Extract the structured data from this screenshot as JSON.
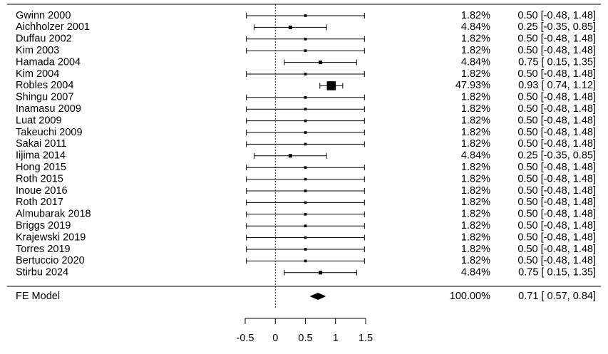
{
  "chart_data": {
    "type": "forest",
    "categories": [
      "Gwinn 2000",
      "Aichholzer 2001",
      "Duffau 2002",
      "Kim 2003",
      "Hamada 2004",
      "Kim 2004",
      "Robles 2004",
      "Shingu 2007",
      "Inamasu 2009",
      "Luat 2009",
      "Takeuchi 2009",
      "Sakai 2011",
      "Iijima 2014",
      "Hong 2015",
      "Roth 2015",
      "Inoue 2016",
      "Roth 2017",
      "Almubarak 2018",
      "Briggs 2019",
      "Krajewski 2019",
      "Torres 2019",
      "Bertuccio 2020",
      "Stirbu 2024"
    ],
    "values": [
      0.5,
      0.25,
      0.5,
      0.5,
      0.75,
      0.5,
      0.93,
      0.5,
      0.5,
      0.5,
      0.5,
      0.5,
      0.25,
      0.5,
      0.5,
      0.5,
      0.5,
      0.5,
      0.5,
      0.5,
      0.5,
      0.5,
      0.75
    ],
    "lower": [
      -0.48,
      -0.35,
      -0.48,
      -0.48,
      0.15,
      -0.48,
      0.74,
      -0.48,
      -0.48,
      -0.48,
      -0.48,
      -0.48,
      -0.35,
      -0.48,
      -0.48,
      -0.48,
      -0.48,
      -0.48,
      -0.48,
      -0.48,
      -0.48,
      -0.48,
      0.15
    ],
    "upper": [
      1.48,
      0.85,
      1.48,
      1.48,
      1.35,
      1.48,
      1.12,
      1.48,
      1.48,
      1.48,
      1.48,
      1.48,
      0.85,
      1.48,
      1.48,
      1.48,
      1.48,
      1.48,
      1.48,
      1.48,
      1.48,
      1.48,
      1.35
    ],
    "weights": [
      1.82,
      4.84,
      1.82,
      1.82,
      4.84,
      1.82,
      47.93,
      1.82,
      1.82,
      1.82,
      1.82,
      1.82,
      4.84,
      1.82,
      1.82,
      1.82,
      1.82,
      1.82,
      1.82,
      1.82,
      1.82,
      1.82,
      4.84
    ],
    "weight_labels": [
      "1.82%",
      "4.84%",
      "1.82%",
      "1.82%",
      "4.84%",
      "1.82%",
      "47.93%",
      "1.82%",
      "1.82%",
      "1.82%",
      "1.82%",
      "1.82%",
      "4.84%",
      "1.82%",
      "1.82%",
      "1.82%",
      "1.82%",
      "1.82%",
      "1.82%",
      "1.82%",
      "1.82%",
      "1.82%",
      "4.84%"
    ],
    "value_labels": [
      "0.50 [-0.48, 1.48]",
      "0.25 [-0.35, 0.85]",
      "0.50 [-0.48, 1.48]",
      "0.50 [-0.48, 1.48]",
      "0.75 [ 0.15, 1.35]",
      "0.50 [-0.48, 1.48]",
      "0.93 [ 0.74, 1.12]",
      "0.50 [-0.48, 1.48]",
      "0.50 [-0.48, 1.48]",
      "0.50 [-0.48, 1.48]",
      "0.50 [-0.48, 1.48]",
      "0.50 [-0.48, 1.48]",
      "0.25 [-0.35, 0.85]",
      "0.50 [-0.48, 1.48]",
      "0.50 [-0.48, 1.48]",
      "0.50 [-0.48, 1.48]",
      "0.50 [-0.48, 1.48]",
      "0.50 [-0.48, 1.48]",
      "0.50 [-0.48, 1.48]",
      "0.50 [-0.48, 1.48]",
      "0.50 [-0.48, 1.48]",
      "0.50 [-0.48, 1.48]",
      "0.75 [ 0.15, 1.35]"
    ],
    "summary": {
      "name": "FE Model",
      "value": 0.71,
      "lower": 0.57,
      "upper": 0.84,
      "weight": 100,
      "weight_label": "100.00%",
      "value_label": "0.71 [ 0.57, 0.84]"
    },
    "refline": 0,
    "xlim": [
      -0.5,
      1.5
    ],
    "xticks": [
      -0.5,
      0,
      0.5,
      1,
      1.5
    ]
  }
}
